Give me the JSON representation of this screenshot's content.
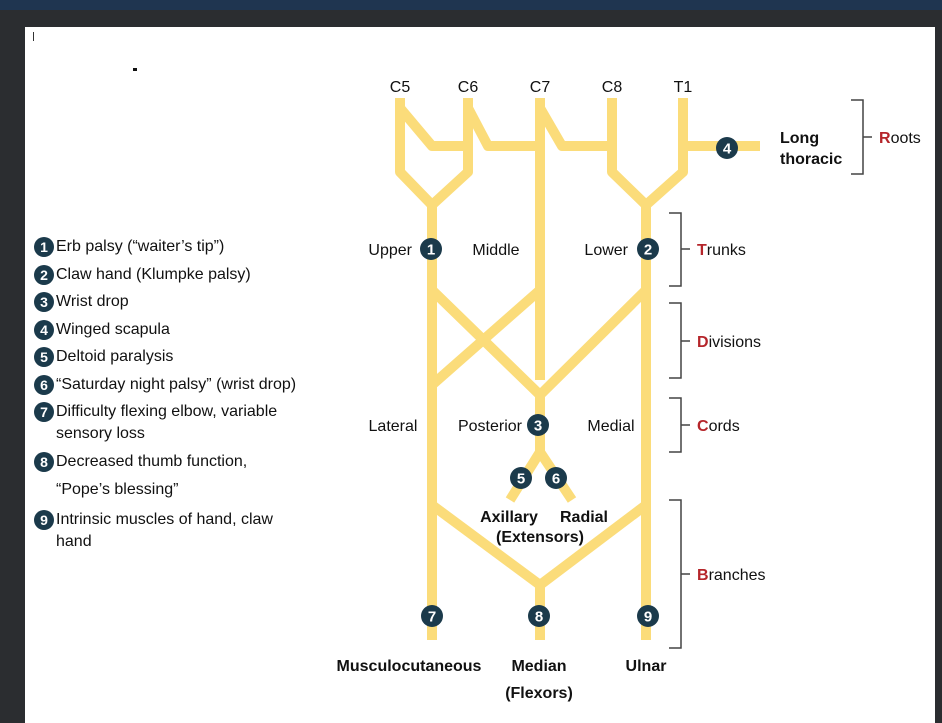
{
  "roots": [
    "C5",
    "C6",
    "C7",
    "C8",
    "T1"
  ],
  "trunks": {
    "upper": "Upper",
    "middle": "Middle",
    "lower": "Lower"
  },
  "cords": {
    "lateral": "Lateral",
    "posterior": "Posterior",
    "medial": "Medial"
  },
  "long_thoracic": [
    "Long",
    "thoracic"
  ],
  "branches": {
    "axillary": "Axillary",
    "radial": "Radial",
    "extensors": "(Extensors)",
    "musculocutaneous": "Musculocutaneous",
    "median": "Median",
    "flexors": "(Flexors)",
    "ulnar": "Ulnar"
  },
  "levels": [
    {
      "initial": "R",
      "rest": "oots"
    },
    {
      "initial": "T",
      "rest": "runks"
    },
    {
      "initial": "D",
      "rest": "ivisions"
    },
    {
      "initial": "C",
      "rest": "ords"
    },
    {
      "initial": "B",
      "rest": "ranches"
    }
  ],
  "injury_markers": [
    "1",
    "2",
    "3",
    "4",
    "5",
    "6",
    "7",
    "8",
    "9"
  ],
  "legend": [
    {
      "num": "1",
      "lines": [
        "Erb palsy (“waiter’s tip”)"
      ]
    },
    {
      "num": "2",
      "lines": [
        "Claw hand (Klumpke palsy)"
      ]
    },
    {
      "num": "3",
      "lines": [
        "Wrist drop"
      ]
    },
    {
      "num": "4",
      "lines": [
        "Winged scapula"
      ]
    },
    {
      "num": "5",
      "lines": [
        "Deltoid paralysis"
      ]
    },
    {
      "num": "6",
      "lines": [
        "“Saturday night palsy” (wrist drop)"
      ]
    },
    {
      "num": "7",
      "lines": [
        "Difficulty flexing elbow, variable",
        "sensory loss"
      ]
    },
    {
      "num": "8",
      "lines": [
        "Decreased thumb function,",
        "“Pope’s blessing”"
      ]
    },
    {
      "num": "9",
      "lines": [
        "Intrinsic muscles of hand, claw",
        "hand"
      ]
    }
  ],
  "colors": {
    "nerve": "#fbdc7a",
    "marker": "#1b3a4b",
    "level_initial": "#b5252a",
    "bracket": "#444444",
    "background": "#2b2d30",
    "panel": "#ffffff"
  }
}
